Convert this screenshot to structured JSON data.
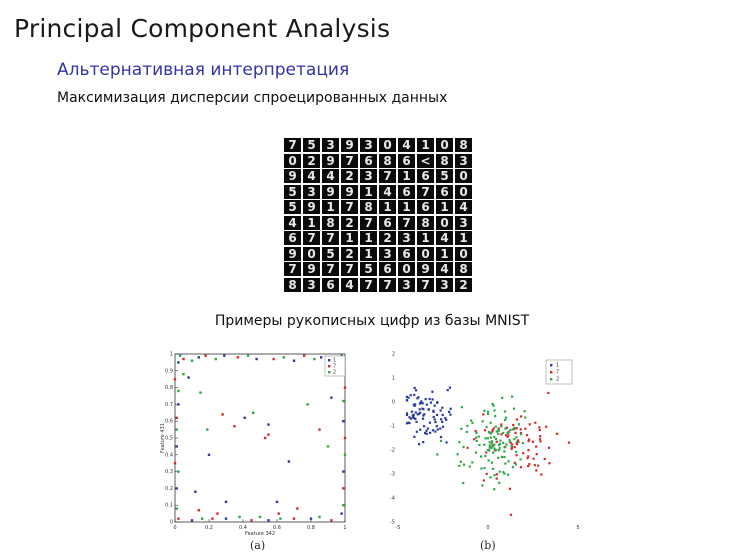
{
  "slide": {
    "title": "Principal Component Analysis",
    "subtitle": "Альтернативная интерпретация",
    "heading": "Максимизация дисперсии спроецированных данных",
    "caption": "Примеры рукописных цифр из базы MNIST"
  },
  "digits": [
    [
      "7",
      "5",
      "3",
      "9",
      "3",
      "0",
      "4",
      "1",
      "0",
      "8"
    ],
    [
      "0",
      "2",
      "9",
      "7",
      "6",
      "8",
      "6",
      "<",
      "8",
      "3"
    ],
    [
      "9",
      "4",
      "4",
      "2",
      "3",
      "7",
      "1",
      "6",
      "5",
      "0"
    ],
    [
      "5",
      "3",
      "9",
      "9",
      "1",
      "4",
      "6",
      "7",
      "6",
      "0"
    ],
    [
      "5",
      "9",
      "1",
      "7",
      "8",
      "1",
      "1",
      "6",
      "1",
      "4"
    ],
    [
      "4",
      "1",
      "8",
      "2",
      "7",
      "6",
      "7",
      "8",
      "0",
      "3"
    ],
    [
      "6",
      "7",
      "7",
      "1",
      "1",
      "2",
      "3",
      "1",
      "4",
      "1"
    ],
    [
      "9",
      "0",
      "5",
      "2",
      "1",
      "3",
      "6",
      "0",
      "1",
      "0"
    ],
    [
      "7",
      "9",
      "7",
      "7",
      "5",
      "6",
      "0",
      "9",
      "4",
      "8"
    ],
    [
      "8",
      "3",
      "6",
      "4",
      "7",
      "7",
      "3",
      "7",
      "3",
      "2"
    ]
  ],
  "colors": {
    "blue": "#2b3a9e",
    "red": "#d42a2a",
    "green": "#2fa84a",
    "subtitle": "#3333a8"
  },
  "chart_data": [
    {
      "type": "scatter",
      "label": "(a)",
      "xlabel": "Feature 342",
      "ylabel": "Feature 431",
      "xlim": [
        0,
        1
      ],
      "ylim": [
        0,
        1
      ],
      "x_ticks": [
        "0",
        "0.2",
        "0.4",
        "0.6",
        "0.8",
        "1"
      ],
      "y_ticks": [
        "0",
        "0.1",
        "0.2",
        "0.3",
        "0.4",
        "0.5",
        "0.6",
        "0.7",
        "0.8",
        "0.9",
        "1"
      ],
      "legend": [
        "1",
        "7",
        "2"
      ],
      "legend_position": "top-right",
      "series": [
        {
          "name": "1",
          "color": "blue",
          "points": [
            [
              0.02,
              0.95
            ],
            [
              0.14,
              0.98
            ],
            [
              0.29,
              0.99
            ],
            [
              0.48,
              0.97
            ],
            [
              0.7,
              0.96
            ],
            [
              0.86,
              0.98
            ],
            [
              0.99,
              0.9
            ],
            [
              0.99,
              0.6
            ],
            [
              0.99,
              0.3
            ],
            [
              0.98,
              0.05
            ],
            [
              0.8,
              0.02
            ],
            [
              0.55,
              0.01
            ],
            [
              0.3,
              0.02
            ],
            [
              0.1,
              0.01
            ],
            [
              0.01,
              0.2
            ],
            [
              0.01,
              0.45
            ],
            [
              0.02,
              0.7
            ],
            [
              0.2,
              0.4
            ],
            [
              0.41,
              0.62
            ],
            [
              0.55,
              0.58
            ],
            [
              0.67,
              0.36
            ],
            [
              0.12,
              0.18
            ],
            [
              0.3,
              0.12
            ],
            [
              0.6,
              0.12
            ],
            [
              0.08,
              0.86
            ],
            [
              0.92,
              0.74
            ]
          ]
        },
        {
          "name": "7",
          "color": "red",
          "points": [
            [
              0.05,
              0.97
            ],
            [
              0.18,
              0.99
            ],
            [
              0.37,
              0.98
            ],
            [
              0.58,
              0.97
            ],
            [
              0.76,
              0.99
            ],
            [
              0.95,
              0.97
            ],
            [
              1.0,
              0.8
            ],
            [
              1.0,
              0.5
            ],
            [
              0.99,
              0.2
            ],
            [
              0.92,
              0.01
            ],
            [
              0.7,
              0.02
            ],
            [
              0.45,
              0.01
            ],
            [
              0.22,
              0.02
            ],
            [
              0.02,
              0.02
            ],
            [
              0.0,
              0.35
            ],
            [
              0.01,
              0.62
            ],
            [
              0.0,
              0.85
            ],
            [
              0.55,
              0.52
            ],
            [
              0.53,
              0.5
            ],
            [
              0.35,
              0.57
            ],
            [
              0.28,
              0.64
            ],
            [
              0.72,
              0.08
            ],
            [
              0.14,
              0.07
            ],
            [
              0.85,
              0.55
            ],
            [
              0.61,
              0.05
            ],
            [
              0.25,
              0.05
            ]
          ]
        },
        {
          "name": "2",
          "color": "green",
          "points": [
            [
              0.03,
              0.99
            ],
            [
              0.1,
              0.96
            ],
            [
              0.24,
              0.97
            ],
            [
              0.43,
              0.99
            ],
            [
              0.64,
              0.98
            ],
            [
              0.82,
              0.97
            ],
            [
              0.98,
              0.99
            ],
            [
              0.99,
              0.72
            ],
            [
              1.0,
              0.4
            ],
            [
              0.99,
              0.1
            ],
            [
              0.85,
              0.03
            ],
            [
              0.62,
              0.02
            ],
            [
              0.38,
              0.03
            ],
            [
              0.16,
              0.02
            ],
            [
              0.01,
              0.08
            ],
            [
              0.02,
              0.3
            ],
            [
              0.01,
              0.55
            ],
            [
              0.02,
              0.78
            ],
            [
              0.19,
              0.55
            ],
            [
              0.15,
              0.77
            ],
            [
              0.46,
              0.65
            ],
            [
              0.78,
              0.7
            ],
            [
              0.9,
              0.45
            ],
            [
              0.05,
              0.88
            ],
            [
              0.96,
              0.93
            ],
            [
              0.5,
              0.03
            ]
          ]
        }
      ]
    },
    {
      "type": "scatter",
      "label": "(b)",
      "xlim": [
        -5,
        5
      ],
      "ylim": [
        -5,
        2
      ],
      "x_ticks": [
        "-5",
        "0",
        "5"
      ],
      "y_ticks": [
        "2",
        "1",
        "0",
        "-1",
        "-2",
        "-3",
        "-4",
        "-5"
      ],
      "legend": [
        "1",
        "7",
        "2"
      ],
      "legend_position": "top-right",
      "clusters": [
        {
          "name": "1",
          "color": "blue",
          "center": [
            -3.4,
            -0.6
          ],
          "spread": [
            1.0,
            0.6
          ],
          "count": 90
        },
        {
          "name": "7",
          "color": "red",
          "center": [
            1.6,
            -1.7
          ],
          "spread": [
            1.6,
            0.8
          ],
          "count": 80
        },
        {
          "name": "2",
          "color": "green",
          "center": [
            0.2,
            -1.8
          ],
          "spread": [
            1.5,
            0.9
          ],
          "count": 120
        }
      ]
    }
  ]
}
